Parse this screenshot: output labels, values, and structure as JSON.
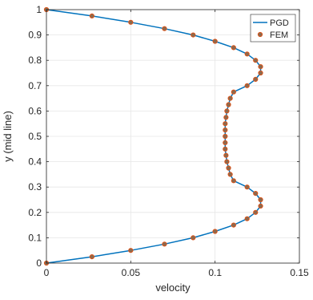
{
  "chart_data": {
    "type": "line",
    "title": "",
    "xlabel": "velocity",
    "ylabel": "y (mid line)",
    "xlim": [
      0,
      0.15
    ],
    "ylim": [
      0,
      1
    ],
    "grid": true,
    "legend_position": "top-right",
    "x_ticks": [
      {
        "value": 0,
        "label": "0"
      },
      {
        "value": 0.05,
        "label": "0.05"
      },
      {
        "value": 0.1,
        "label": "0.1"
      },
      {
        "value": 0.15,
        "label": "0.15"
      }
    ],
    "y_ticks": [
      {
        "value": 0,
        "label": "0"
      },
      {
        "value": 0.1,
        "label": "0.1"
      },
      {
        "value": 0.2,
        "label": "0.2"
      },
      {
        "value": 0.3,
        "label": "0.3"
      },
      {
        "value": 0.4,
        "label": "0.4"
      },
      {
        "value": 0.5,
        "label": "0.5"
      },
      {
        "value": 0.6,
        "label": "0.6"
      },
      {
        "value": 0.7,
        "label": "0.7"
      },
      {
        "value": 0.8,
        "label": "0.8"
      },
      {
        "value": 0.9,
        "label": "0.9"
      },
      {
        "value": 1,
        "label": "1"
      }
    ],
    "series": [
      {
        "name": "PGD",
        "style": "line",
        "color": "#0072BD",
        "points": [
          [
            0,
            0
          ],
          [
            0.027,
            0.025
          ],
          [
            0.05,
            0.05
          ],
          [
            0.07,
            0.075
          ],
          [
            0.087,
            0.1
          ],
          [
            0.1,
            0.125
          ],
          [
            0.111,
            0.15
          ],
          [
            0.119,
            0.175
          ],
          [
            0.124,
            0.2
          ],
          [
            0.127,
            0.225
          ],
          [
            0.127,
            0.25
          ],
          [
            0.124,
            0.275
          ],
          [
            0.119,
            0.3
          ],
          [
            0.111,
            0.325
          ],
          [
            0.109,
            0.35
          ],
          [
            0.108,
            0.375
          ],
          [
            0.107,
            0.4
          ],
          [
            0.1065,
            0.425
          ],
          [
            0.106,
            0.45
          ],
          [
            0.106,
            0.475
          ],
          [
            0.106,
            0.5
          ],
          [
            0.106,
            0.525
          ],
          [
            0.106,
            0.55
          ],
          [
            0.1065,
            0.575
          ],
          [
            0.107,
            0.6
          ],
          [
            0.108,
            0.625
          ],
          [
            0.109,
            0.65
          ],
          [
            0.111,
            0.675
          ],
          [
            0.119,
            0.7
          ],
          [
            0.124,
            0.725
          ],
          [
            0.127,
            0.75
          ],
          [
            0.127,
            0.775
          ],
          [
            0.124,
            0.8
          ],
          [
            0.119,
            0.825
          ],
          [
            0.111,
            0.85
          ],
          [
            0.1,
            0.875
          ],
          [
            0.087,
            0.9
          ],
          [
            0.07,
            0.925
          ],
          [
            0.05,
            0.95
          ],
          [
            0.027,
            0.975
          ],
          [
            0,
            1
          ]
        ]
      },
      {
        "name": "FEM",
        "style": "markers",
        "color": "#D95319",
        "marker_fill": "#8B6A4F",
        "points": [
          [
            0,
            0
          ],
          [
            0.027,
            0.025
          ],
          [
            0.05,
            0.05
          ],
          [
            0.07,
            0.075
          ],
          [
            0.087,
            0.1
          ],
          [
            0.1,
            0.125
          ],
          [
            0.111,
            0.15
          ],
          [
            0.119,
            0.175
          ],
          [
            0.124,
            0.2
          ],
          [
            0.127,
            0.225
          ],
          [
            0.127,
            0.25
          ],
          [
            0.124,
            0.275
          ],
          [
            0.119,
            0.3
          ],
          [
            0.111,
            0.325
          ],
          [
            0.109,
            0.35
          ],
          [
            0.108,
            0.375
          ],
          [
            0.107,
            0.4
          ],
          [
            0.1065,
            0.425
          ],
          [
            0.106,
            0.45
          ],
          [
            0.106,
            0.475
          ],
          [
            0.106,
            0.5
          ],
          [
            0.106,
            0.525
          ],
          [
            0.106,
            0.55
          ],
          [
            0.1065,
            0.575
          ],
          [
            0.107,
            0.6
          ],
          [
            0.108,
            0.625
          ],
          [
            0.109,
            0.65
          ],
          [
            0.111,
            0.675
          ],
          [
            0.119,
            0.7
          ],
          [
            0.124,
            0.725
          ],
          [
            0.127,
            0.75
          ],
          [
            0.127,
            0.775
          ],
          [
            0.124,
            0.8
          ],
          [
            0.119,
            0.825
          ],
          [
            0.111,
            0.85
          ],
          [
            0.1,
            0.875
          ],
          [
            0.087,
            0.9
          ],
          [
            0.07,
            0.925
          ],
          [
            0.05,
            0.95
          ],
          [
            0.027,
            0.975
          ],
          [
            0,
            1
          ]
        ]
      }
    ]
  }
}
